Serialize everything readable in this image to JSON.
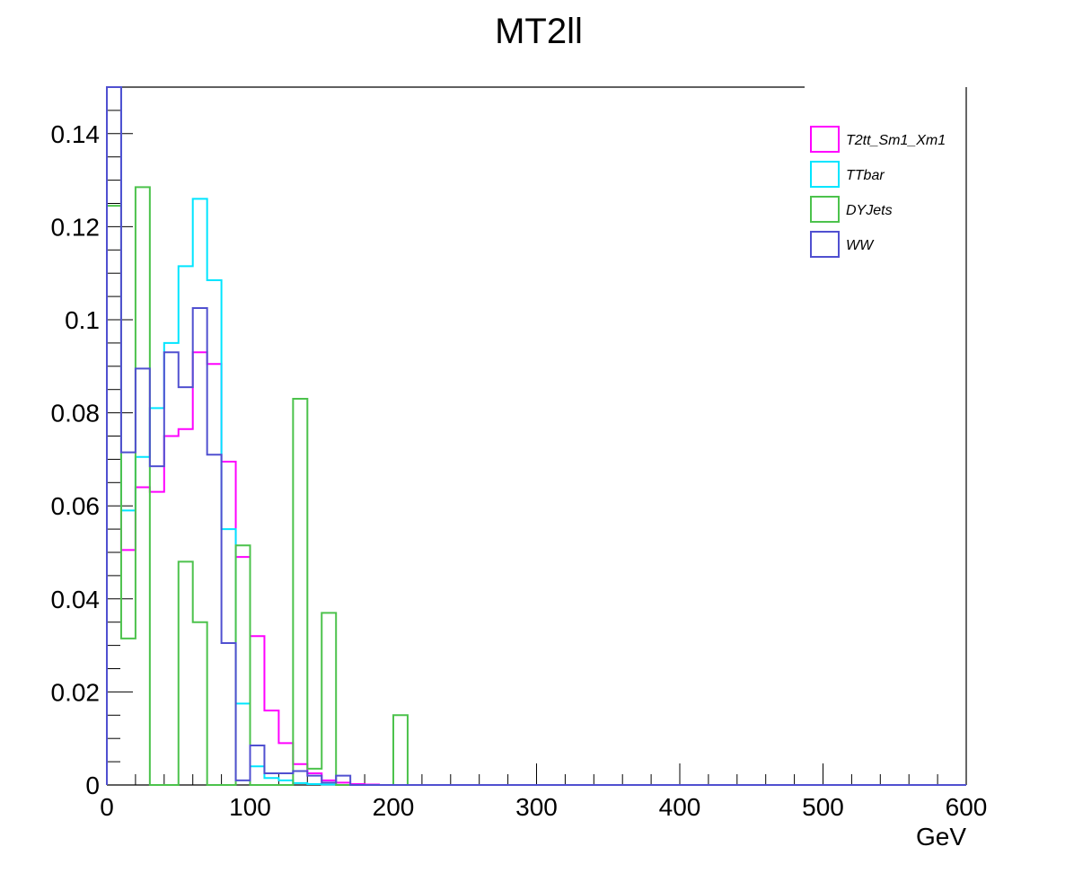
{
  "chart_data": {
    "type": "histogram-step",
    "title": "MT2ll",
    "xlabel": "GeV",
    "ylabel": "",
    "xlim": [
      0,
      600
    ],
    "ylim": [
      0,
      0.15
    ],
    "bin_width": 10,
    "x_ticks": [
      0,
      100,
      200,
      300,
      400,
      500,
      600
    ],
    "x_tick_labels": [
      "0",
      "100",
      "200",
      "300",
      "400",
      "500",
      "600"
    ],
    "y_ticks": [
      0,
      0.02,
      0.04,
      0.06,
      0.08,
      0.1,
      0.12,
      0.14
    ],
    "y_tick_labels": [
      "0",
      "0.02",
      "0.04",
      "0.06",
      "0.08",
      "0.1",
      "0.12",
      "0.14"
    ],
    "grid": false,
    "legend_position": "top-right",
    "series": [
      {
        "name": "T2tt_Sm1_Xm1",
        "color": "#ff00ff",
        "values": [
          0.15,
          0.0505,
          0.064,
          0.063,
          0.075,
          0.0765,
          0.093,
          0.0905,
          0.0695,
          0.049,
          0.032,
          0.016,
          0.009,
          0.0045,
          0.0025,
          0.001,
          0.0005,
          0.0002,
          0.0001,
          0,
          0
        ]
      },
      {
        "name": "TTbar",
        "color": "#00e5ff",
        "values": [
          0.15,
          0.059,
          0.0705,
          0.081,
          0.095,
          0.1115,
          0.126,
          0.1085,
          0.055,
          0.0175,
          0.004,
          0.0015,
          0.001,
          0.0004,
          0.0002,
          0.0001,
          0,
          0,
          0,
          0,
          0
        ]
      },
      {
        "name": "DYJets",
        "color": "#4cc24c",
        "values": [
          0.1245,
          0.0315,
          0.1285,
          0,
          0,
          0.048,
          0.035,
          0,
          0,
          0.0515,
          0,
          0,
          0,
          0.083,
          0.0035,
          0.037,
          0,
          0,
          0,
          0,
          0.015
        ]
      },
      {
        "name": "WW",
        "color": "#5050d0",
        "values": [
          0.15,
          0.0715,
          0.0895,
          0.0685,
          0.093,
          0.0855,
          0.1025,
          0.071,
          0.0305,
          0.001,
          0.0085,
          0.0025,
          0.0025,
          0.003,
          0.002,
          0.0005,
          0.002,
          0,
          0,
          0,
          0
        ]
      }
    ]
  }
}
